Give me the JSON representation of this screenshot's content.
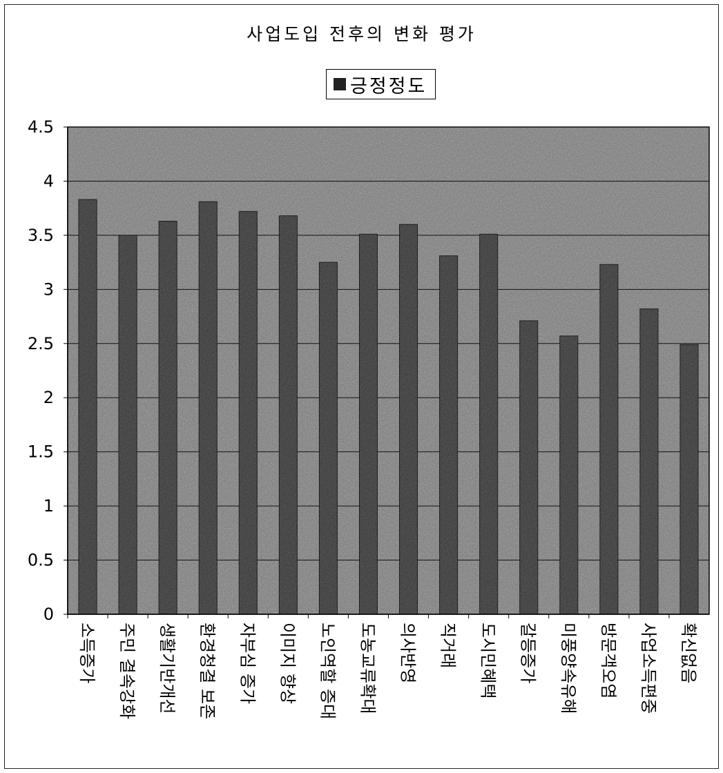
{
  "chart_data": {
    "type": "bar",
    "title": "사업도입 전후의 변화 평가",
    "xlabel": "",
    "ylabel": "",
    "ylim": [
      0,
      4.5
    ],
    "yticks": [
      "0",
      "0.5",
      "1",
      "1.5",
      "2",
      "2.5",
      "3",
      "3.5",
      "4",
      "4.5"
    ],
    "legend": "top-center",
    "grid": true,
    "categories": [
      "소득증가",
      "주민 결속강화",
      "생활기반개선",
      "환경청결 보존",
      "자부심 증가",
      "이미지 향상",
      "노인역할 증대",
      "도농교류확대",
      "의사반영",
      "직거래",
      "도시민혜택",
      "갈등증가",
      "미풍양속유해",
      "방문객오염",
      "사업소득편중",
      "확신없음"
    ],
    "series": [
      {
        "name": "긍정정도",
        "values": [
          3.83,
          3.5,
          3.63,
          3.81,
          3.72,
          3.68,
          3.25,
          3.51,
          3.6,
          3.31,
          3.51,
          2.71,
          2.57,
          3.23,
          2.82,
          2.49
        ]
      }
    ],
    "colors": {
      "plot_bg": "#7d7d7d",
      "bar_fill": "#3a3a3a",
      "grid": "#111111"
    }
  }
}
